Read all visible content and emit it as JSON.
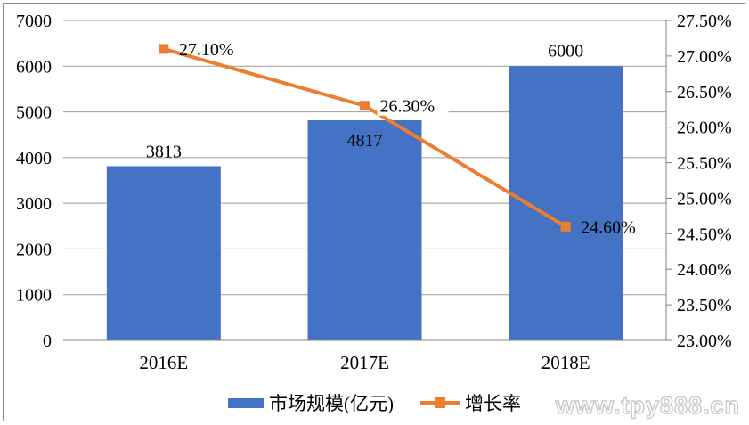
{
  "watermark": "www.tpy888.cn",
  "legend": {
    "items": [
      {
        "label": "市场规模(亿元)",
        "swatch_color": "#4472C4",
        "type": "bar"
      },
      {
        "label": "增长率",
        "swatch_color": "#ED7D31",
        "type": "line"
      }
    ]
  },
  "colors": {
    "bar": "#4472C4",
    "line": "#ED7D31",
    "gridline": "#9b9b9b",
    "axis": "#808080",
    "text": "#000000"
  },
  "chart_data": {
    "type": "combo-bar-line",
    "title": "",
    "categories": [
      "2016E",
      "2017E",
      "2018E"
    ],
    "series": [
      {
        "name": "市场规模(亿元)",
        "type": "bar",
        "axis": "left",
        "color": "#4472C4",
        "values": [
          3813,
          4817,
          6000
        ],
        "labels": [
          "3813",
          "4817",
          "6000"
        ]
      },
      {
        "name": "增长率",
        "type": "line",
        "axis": "right",
        "color": "#ED7D31",
        "marker": "square",
        "values": [
          27.1,
          26.3,
          24.6
        ],
        "labels": [
          "27.10%",
          "26.30%",
          "24.60%"
        ]
      }
    ],
    "left_axis": {
      "min": 0,
      "max": 7000,
      "step": 1000,
      "ticks": [
        "7000",
        "6000",
        "5000",
        "4000",
        "3000",
        "2000",
        "1000",
        "0"
      ]
    },
    "right_axis": {
      "min": 23.0,
      "max": 27.5,
      "step": 0.5,
      "ticks": [
        "27.50%",
        "27.00%",
        "26.50%",
        "26.00%",
        "25.50%",
        "25.00%",
        "24.50%",
        "24.00%",
        "23.50%",
        "23.00%"
      ]
    },
    "grid": true,
    "legend_position": "bottom"
  }
}
